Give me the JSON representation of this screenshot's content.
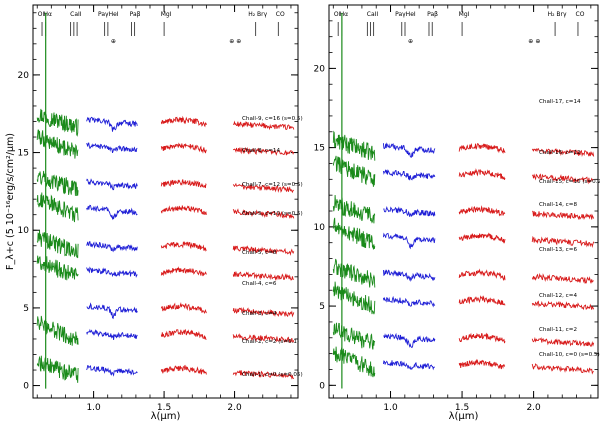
{
  "chart_data": [
    {
      "type": "line",
      "panel": "left",
      "title": "",
      "xlabel": "λ(μm)",
      "ylabel": "F_λ+c (5 10⁻¹⁶erg/s/cm²/μm)",
      "xlim": [
        0.57,
        2.45
      ],
      "ylim": [
        -0.8,
        24.5
      ],
      "xticks": [
        1.0,
        1.5,
        2.0
      ],
      "xticklabels": [
        "1.0",
        "1.5",
        "2.0"
      ],
      "yticks": [
        0,
        5,
        10,
        15,
        20
      ],
      "yticklabels": [
        "0",
        "5",
        "10",
        "15",
        "20"
      ],
      "line_features": [
        {
          "label": "OI",
          "x": 0.634
        },
        {
          "label": "Hα",
          "x": 0.66
        },
        {
          "label": "CaII",
          "x": 0.86
        },
        {
          "label": "PaγHeI",
          "x": 1.09
        },
        {
          "label": "Paβ",
          "x": 1.28
        },
        {
          "label": "MgI",
          "x": 1.5
        },
        {
          "label": "H₂ Brγ",
          "x": 2.15
        },
        {
          "label": "CO",
          "x": 2.31
        }
      ],
      "telluric_marks": [
        1.14,
        1.98,
        2.03
      ],
      "telluric_symbol": "⊕",
      "series": [
        {
          "name": "Chall-9, c=16 (s=0.5)",
          "offset": 16.0
        },
        {
          "name": "Chall-8, c=14",
          "offset": 14.0
        },
        {
          "name": "Chall-7, c=12 (s=0.5)",
          "offset": 12.0
        },
        {
          "name": "Chall-5, c=10 (s=0.5)",
          "offset": 10.0
        },
        {
          "name": "Chall-5, c=8",
          "offset": 8.0
        },
        {
          "name": "Chall-4, c=6",
          "offset": 6.0
        },
        {
          "name": "Chall-3, c=4",
          "offset": 4.0
        },
        {
          "name": "Chall-2, c=2 (s=0.1)",
          "offset": 2.0
        },
        {
          "name": "Chall-1, c=0 (s=0.05)",
          "offset": 0.0
        }
      ]
    },
    {
      "type": "line",
      "panel": "right",
      "title": "",
      "xlabel": "λ(μm)",
      "ylabel": "",
      "xlim": [
        0.57,
        2.45
      ],
      "ylim": [
        -0.8,
        24.0
      ],
      "xticks": [
        1.0,
        1.5,
        2.0
      ],
      "xticklabels": [
        "1.0",
        "1.5",
        "2.0"
      ],
      "yticks": [
        0,
        5,
        10,
        15,
        20
      ],
      "yticklabels": [
        "0",
        "5",
        "10",
        "15",
        "20"
      ],
      "line_features": [
        {
          "label": "OI",
          "x": 0.634
        },
        {
          "label": "Hα",
          "x": 0.66
        },
        {
          "label": "CaII",
          "x": 0.86
        },
        {
          "label": "PaγHeI",
          "x": 1.09
        },
        {
          "label": "Paβ",
          "x": 1.28
        },
        {
          "label": "MgI",
          "x": 1.5
        },
        {
          "label": "H₂ Brγ",
          "x": 2.15
        },
        {
          "label": "CO",
          "x": 2.31
        }
      ],
      "telluric_marks": [
        1.14,
        1.98,
        2.03
      ],
      "telluric_symbol": "⊕",
      "series": [
        {
          "name": "Chall-17, c=14",
          "offset": 14.0
        },
        {
          "name": "Chall-16, c=12",
          "offset": 12.0
        },
        {
          "name": "Chall-15, c=10 (s=0.2)",
          "offset": 10.0
        },
        {
          "name": "Chall-14, c=8",
          "offset": 8.0
        },
        {
          "name": "Chall-13, c=6",
          "offset": 6.0
        },
        {
          "name": "Chall-12, c=4",
          "offset": 4.0
        },
        {
          "name": "Chall-11, c=2",
          "offset": 2.0
        },
        {
          "name": "Chall-10, c=0 (s=0.5)",
          "offset": 0.0
        }
      ]
    }
  ],
  "colors": {
    "optical": "#1a8a1a",
    "J_band": "#1f1fd6",
    "H_band": "#d81b1b",
    "K_band": "#d81b1b",
    "axes": "#000000"
  }
}
